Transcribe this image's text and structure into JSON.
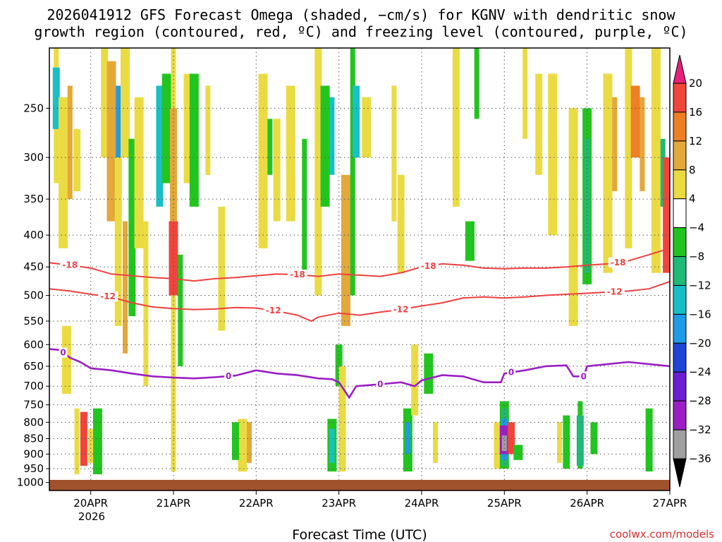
{
  "chart_data": {
    "type": "time-height-section",
    "title_line1": "2026041912 GFS Forecast Omega (shaded, −cm/s) for KGNV with dendritic snow",
    "title_line2": "growth region (contoured, red, ºC) and freezing level (contoured, purple, ºC)",
    "xlabel": "Forecast Time (UTC)",
    "credit": "coolwx.com/models",
    "year_label": "2026",
    "x_range_hours": [
      -12,
      168
    ],
    "pressure_range": [
      1030,
      200
    ],
    "x_ticks": [
      {
        "label": "20APR",
        "hour": 0
      },
      {
        "label": "21APR",
        "hour": 24
      },
      {
        "label": "22APR",
        "hour": 48
      },
      {
        "label": "23APR",
        "hour": 72
      },
      {
        "label": "24APR",
        "hour": 96
      },
      {
        "label": "25APR",
        "hour": 120
      },
      {
        "label": "26APR",
        "hour": 144
      },
      {
        "label": "27APR",
        "hour": 168
      }
    ],
    "y_ticks": [
      250,
      300,
      350,
      400,
      450,
      500,
      550,
      600,
      650,
      700,
      750,
      800,
      850,
      900,
      950,
      1000
    ],
    "colorbar": {
      "labels": [
        "20",
        "16",
        "12",
        "8",
        "4",
        "−4",
        "−8",
        "−12",
        "−16",
        "−20",
        "−24",
        "−28",
        "−32",
        "−36"
      ],
      "bins": [
        {
          "lo": 20,
          "hi": 99,
          "color": "#e8207a",
          "shape": "triangle-up"
        },
        {
          "lo": 16,
          "hi": 20,
          "color": "#f0453a"
        },
        {
          "lo": 12,
          "hi": 16,
          "color": "#ef7f25"
        },
        {
          "lo": 8,
          "hi": 12,
          "color": "#e3a83a"
        },
        {
          "lo": 4,
          "hi": 8,
          "color": "#ebdb43"
        },
        {
          "lo": -4,
          "hi": 4,
          "color": "#ffffff"
        },
        {
          "lo": -8,
          "hi": -4,
          "color": "#22c51f"
        },
        {
          "lo": -12,
          "hi": -8,
          "color": "#1fb978"
        },
        {
          "lo": -16,
          "hi": -12,
          "color": "#18c0c6"
        },
        {
          "lo": -20,
          "hi": -16,
          "color": "#1f9ae6"
        },
        {
          "lo": -24,
          "hi": -20,
          "color": "#1f44d6"
        },
        {
          "lo": -28,
          "hi": -24,
          "color": "#6a1fd0"
        },
        {
          "lo": -32,
          "hi": -28,
          "color": "#9b1fc4"
        },
        {
          "lo": -36,
          "hi": -32,
          "color": "#9f9f9f"
        },
        {
          "lo": -99,
          "hi": -36,
          "color": "#000000",
          "shape": "triangle-down"
        }
      ]
    },
    "contours": [
      {
        "name": "-18C",
        "label": "-18",
        "color": "#ee4040",
        "points": [
          [
            -12,
            443
          ],
          [
            -6,
            447
          ],
          [
            0,
            452
          ],
          [
            6,
            462
          ],
          [
            12,
            465
          ],
          [
            18,
            468
          ],
          [
            24,
            470
          ],
          [
            30,
            474
          ],
          [
            36,
            470
          ],
          [
            42,
            468
          ],
          [
            48,
            465
          ],
          [
            54,
            462
          ],
          [
            60,
            463
          ],
          [
            66,
            466
          ],
          [
            72,
            462
          ],
          [
            78,
            464
          ],
          [
            84,
            466
          ],
          [
            90,
            460
          ],
          [
            96,
            450
          ],
          [
            102,
            445
          ],
          [
            108,
            447
          ],
          [
            114,
            452
          ],
          [
            120,
            453
          ],
          [
            126,
            452
          ],
          [
            132,
            452
          ],
          [
            138,
            450
          ],
          [
            144,
            447
          ],
          [
            150,
            445
          ],
          [
            156,
            440
          ],
          [
            162,
            430
          ],
          [
            168,
            420
          ]
        ],
        "labels_at": [
          -6,
          60,
          98,
          153
        ]
      },
      {
        "name": "-12C",
        "label": "-12",
        "color": "#ee4040",
        "points": [
          [
            -12,
            488
          ],
          [
            -6,
            492
          ],
          [
            0,
            498
          ],
          [
            6,
            503
          ],
          [
            12,
            514
          ],
          [
            18,
            522
          ],
          [
            24,
            525
          ],
          [
            30,
            527
          ],
          [
            36,
            526
          ],
          [
            42,
            523
          ],
          [
            48,
            524
          ],
          [
            54,
            530
          ],
          [
            60,
            538
          ],
          [
            64,
            550
          ],
          [
            66,
            542
          ],
          [
            72,
            534
          ],
          [
            78,
            538
          ],
          [
            84,
            532
          ],
          [
            90,
            527
          ],
          [
            96,
            520
          ],
          [
            102,
            514
          ],
          [
            108,
            505
          ],
          [
            114,
            503
          ],
          [
            120,
            505
          ],
          [
            126,
            503
          ],
          [
            132,
            500
          ],
          [
            138,
            498
          ],
          [
            144,
            496
          ],
          [
            150,
            494
          ],
          [
            156,
            492
          ],
          [
            162,
            488
          ],
          [
            168,
            475
          ]
        ],
        "labels_at": [
          5,
          53,
          90,
          152
        ]
      },
      {
        "name": "0C freezing level",
        "label": "0",
        "color": "#9a1fc4",
        "points": [
          [
            -12,
            610
          ],
          [
            -9,
            612
          ],
          [
            -6,
            630
          ],
          [
            -3,
            640
          ],
          [
            0,
            655
          ],
          [
            6,
            660
          ],
          [
            12,
            668
          ],
          [
            18,
            675
          ],
          [
            24,
            678
          ],
          [
            30,
            680
          ],
          [
            36,
            677
          ],
          [
            42,
            673
          ],
          [
            48,
            660
          ],
          [
            54,
            668
          ],
          [
            60,
            672
          ],
          [
            66,
            680
          ],
          [
            70,
            682
          ],
          [
            72,
            690
          ],
          [
            75,
            730
          ],
          [
            77,
            700
          ],
          [
            84,
            695
          ],
          [
            90,
            690
          ],
          [
            94,
            700
          ],
          [
            96,
            685
          ],
          [
            102,
            672
          ],
          [
            108,
            675
          ],
          [
            114,
            690
          ],
          [
            119,
            690
          ],
          [
            120,
            668
          ],
          [
            122,
            665
          ],
          [
            126,
            660
          ],
          [
            132,
            650
          ],
          [
            138,
            648
          ],
          [
            140,
            675
          ],
          [
            143,
            675
          ],
          [
            144,
            650
          ],
          [
            150,
            645
          ],
          [
            156,
            640
          ],
          [
            162,
            645
          ],
          [
            168,
            650
          ]
        ],
        "labels_at": [
          -8,
          40,
          84,
          122,
          143
        ]
      }
    ],
    "omega_cells": [
      {
        "t": -10,
        "p1": 200,
        "p2": 330,
        "c": "#ebdb43"
      },
      {
        "t": -10,
        "p1": 215,
        "p2": 270,
        "c": "#18c0c6"
      },
      {
        "t": -8,
        "p1": 240,
        "p2": 420,
        "c": "#ebdb43"
      },
      {
        "t": -6,
        "p1": 230,
        "p2": 350,
        "c": "#e3a83a"
      },
      {
        "t": -4,
        "p1": 270,
        "p2": 340,
        "c": "#ebdb43"
      },
      {
        "t": -7,
        "p1": 560,
        "p2": 720,
        "c": "#ebdb43"
      },
      {
        "t": -4,
        "p1": 760,
        "p2": 970,
        "c": "#ebdb43"
      },
      {
        "t": -2,
        "p1": 770,
        "p2": 940,
        "c": "#f0453a"
      },
      {
        "t": 2,
        "p1": 760,
        "p2": 970,
        "c": "#22c51f"
      },
      {
        "t": 0,
        "p1": 820,
        "p2": 930,
        "c": "#ebdb43"
      },
      {
        "t": 4,
        "p1": 200,
        "p2": 300,
        "c": "#ebdb43"
      },
      {
        "t": 6,
        "p1": 210,
        "p2": 380,
        "c": "#e3a83a"
      },
      {
        "t": 8,
        "p1": 230,
        "p2": 300,
        "c": "#1f9ae6"
      },
      {
        "t": 8,
        "p1": 300,
        "p2": 560,
        "c": "#ebdb43"
      },
      {
        "t": 10,
        "p1": 200,
        "p2": 300,
        "c": "#ebdb43"
      },
      {
        "t": 10,
        "p1": 380,
        "p2": 620,
        "c": "#e3a83a"
      },
      {
        "t": 12,
        "p1": 280,
        "p2": 540,
        "c": "#22c51f"
      },
      {
        "t": 14,
        "p1": 240,
        "p2": 420,
        "c": "#ebdb43"
      },
      {
        "t": 16,
        "p1": 380,
        "p2": 700,
        "c": "#ebdb43"
      },
      {
        "t": 20,
        "p1": 230,
        "p2": 360,
        "c": "#18c0c6"
      },
      {
        "t": 22,
        "p1": 220,
        "p2": 330,
        "c": "#22c51f"
      },
      {
        "t": 24,
        "p1": 200,
        "p2": 960,
        "c": "#ebdb43"
      },
      {
        "t": 24,
        "p1": 250,
        "p2": 430,
        "c": "#e3a83a"
      },
      {
        "t": 24,
        "p1": 380,
        "p2": 500,
        "c": "#f0453a"
      },
      {
        "t": 26,
        "p1": 430,
        "p2": 650,
        "c": "#22c51f"
      },
      {
        "t": 28,
        "p1": 220,
        "p2": 330,
        "c": "#ebdb43"
      },
      {
        "t": 30,
        "p1": 220,
        "p2": 360,
        "c": "#22c51f"
      },
      {
        "t": 34,
        "p1": 230,
        "p2": 320,
        "c": "#ebdb43"
      },
      {
        "t": 38,
        "p1": 360,
        "p2": 570,
        "c": "#ebdb43"
      },
      {
        "t": 44,
        "p1": 790,
        "p2": 960,
        "c": "#ebdb43"
      },
      {
        "t": 46,
        "p1": 800,
        "p2": 930,
        "c": "#e3a83a"
      },
      {
        "t": 42,
        "p1": 800,
        "p2": 920,
        "c": "#22c51f"
      },
      {
        "t": 50,
        "p1": 220,
        "p2": 420,
        "c": "#ebdb43"
      },
      {
        "t": 52,
        "p1": 260,
        "p2": 320,
        "c": "#22c51f"
      },
      {
        "t": 54,
        "p1": 260,
        "p2": 380,
        "c": "#ebdb43"
      },
      {
        "t": 58,
        "p1": 230,
        "p2": 380,
        "c": "#ebdb43"
      },
      {
        "t": 62,
        "p1": 280,
        "p2": 470,
        "c": "#22c51f"
      },
      {
        "t": 66,
        "p1": 200,
        "p2": 500,
        "c": "#ebdb43"
      },
      {
        "t": 68,
        "p1": 230,
        "p2": 360,
        "c": "#22c51f"
      },
      {
        "t": 70,
        "p1": 240,
        "p2": 320,
        "c": "#18c0c6"
      },
      {
        "t": 72,
        "p1": 600,
        "p2": 700,
        "c": "#22c51f"
      },
      {
        "t": 70,
        "p1": 790,
        "p2": 960,
        "c": "#22c51f"
      },
      {
        "t": 70,
        "p1": 820,
        "p2": 930,
        "c": "#18c0c6"
      },
      {
        "t": 73,
        "p1": 650,
        "p2": 960,
        "c": "#ebdb43"
      },
      {
        "t": 74,
        "p1": 320,
        "p2": 560,
        "c": "#e3a83a"
      },
      {
        "t": 76,
        "p1": 200,
        "p2": 500,
        "c": "#22c51f"
      },
      {
        "t": 77,
        "p1": 230,
        "p2": 300,
        "c": "#18c0c6"
      },
      {
        "t": 80,
        "p1": 240,
        "p2": 300,
        "c": "#ebdb43"
      },
      {
        "t": 88,
        "p1": 230,
        "p2": 380,
        "c": "#ebdb43"
      },
      {
        "t": 90,
        "p1": 320,
        "p2": 460,
        "c": "#ebdb43"
      },
      {
        "t": 92,
        "p1": 760,
        "p2": 960,
        "c": "#22c51f"
      },
      {
        "t": 92,
        "p1": 800,
        "p2": 900,
        "c": "#1f9ae6"
      },
      {
        "t": 94,
        "p1": 600,
        "p2": 780,
        "c": "#ebdb43"
      },
      {
        "t": 98,
        "p1": 620,
        "p2": 720,
        "c": "#22c51f"
      },
      {
        "t": 100,
        "p1": 800,
        "p2": 930,
        "c": "#ebdb43"
      },
      {
        "t": 106,
        "p1": 200,
        "p2": 360,
        "c": "#ebdb43"
      },
      {
        "t": 110,
        "p1": 380,
        "p2": 440,
        "c": "#22c51f"
      },
      {
        "t": 112,
        "p1": 200,
        "p2": 260,
        "c": "#22c51f"
      },
      {
        "t": 118,
        "p1": 800,
        "p2": 950,
        "c": "#ebdb43"
      },
      {
        "t": 120,
        "p1": 740,
        "p2": 950,
        "c": "#22c51f"
      },
      {
        "t": 120,
        "p1": 760,
        "p2": 940,
        "c": "#1fb978"
      },
      {
        "t": 120,
        "p1": 790,
        "p2": 920,
        "c": "#1f9ae6"
      },
      {
        "t": 120,
        "p1": 810,
        "p2": 900,
        "c": "#9b1fc4"
      },
      {
        "t": 120,
        "p1": 840,
        "p2": 890,
        "c": "#9f9f9f"
      },
      {
        "t": 122,
        "p1": 800,
        "p2": 900,
        "c": "#f0453a"
      },
      {
        "t": 124,
        "p1": 870,
        "p2": 920,
        "c": "#22c51f"
      },
      {
        "t": 126,
        "p1": 200,
        "p2": 280,
        "c": "#ebdb43"
      },
      {
        "t": 130,
        "p1": 220,
        "p2": 320,
        "c": "#ebdb43"
      },
      {
        "t": 134,
        "p1": 220,
        "p2": 400,
        "c": "#ebdb43"
      },
      {
        "t": 136,
        "p1": 800,
        "p2": 930,
        "c": "#ebdb43"
      },
      {
        "t": 138,
        "p1": 780,
        "p2": 950,
        "c": "#22c51f"
      },
      {
        "t": 140,
        "p1": 250,
        "p2": 560,
        "c": "#ebdb43"
      },
      {
        "t": 142,
        "p1": 740,
        "p2": 950,
        "c": "#22c51f"
      },
      {
        "t": 142,
        "p1": 780,
        "p2": 940,
        "c": "#1fb978"
      },
      {
        "t": 144,
        "p1": 250,
        "p2": 480,
        "c": "#22c51f"
      },
      {
        "t": 144,
        "p1": 280,
        "p2": 460,
        "c": "#1fb978"
      },
      {
        "t": 146,
        "p1": 800,
        "p2": 900,
        "c": "#22c51f"
      },
      {
        "t": 150,
        "p1": 220,
        "p2": 460,
        "c": "#ebdb43"
      },
      {
        "t": 152,
        "p1": 240,
        "p2": 340,
        "c": "#e3a83a"
      },
      {
        "t": 156,
        "p1": 200,
        "p2": 420,
        "c": "#ebdb43"
      },
      {
        "t": 158,
        "p1": 230,
        "p2": 300,
        "c": "#ef7f25"
      },
      {
        "t": 160,
        "p1": 240,
        "p2": 340,
        "c": "#e3a83a"
      },
      {
        "t": 162,
        "p1": 760,
        "p2": 960,
        "c": "#22c51f"
      },
      {
        "t": 164,
        "p1": 200,
        "p2": 460,
        "c": "#ebdb43"
      },
      {
        "t": 166,
        "p1": 280,
        "p2": 360,
        "c": "#1fb978"
      },
      {
        "t": 167,
        "p1": 300,
        "p2": 460,
        "c": "#f0453a"
      }
    ]
  }
}
